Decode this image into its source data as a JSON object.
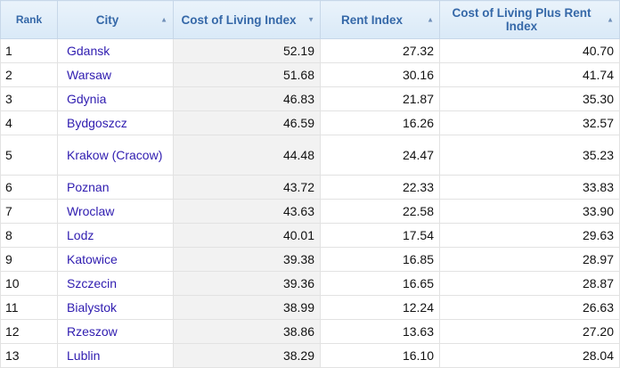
{
  "headers": {
    "rank": "Rank",
    "city": "City",
    "col": "Cost of Living Index",
    "rent": "Rent Index",
    "plus": "Cost of Living Plus Rent Index"
  },
  "sort_icons": {
    "city": "chevron-up-icon",
    "col": "chevron-down-icon",
    "rent": "chevron-up-icon",
    "plus": "chevron-up-icon"
  },
  "colors": {
    "header_text": "#3568a8",
    "link": "#2f1cb0",
    "sorted_column_bg": "#f2f2f2"
  },
  "rows": [
    {
      "rank": "1",
      "city": "Gdansk",
      "col": "52.19",
      "rent": "27.32",
      "plus": "40.70"
    },
    {
      "rank": "2",
      "city": "Warsaw",
      "col": "51.68",
      "rent": "30.16",
      "plus": "41.74"
    },
    {
      "rank": "3",
      "city": "Gdynia",
      "col": "46.83",
      "rent": "21.87",
      "plus": "35.30"
    },
    {
      "rank": "4",
      "city": "Bydgoszcz",
      "col": "46.59",
      "rent": "16.26",
      "plus": "32.57"
    },
    {
      "rank": "5",
      "city": "Krakow (Cracow)",
      "col": "44.48",
      "rent": "24.47",
      "plus": "35.23"
    },
    {
      "rank": "6",
      "city": "Poznan",
      "col": "43.72",
      "rent": "22.33",
      "plus": "33.83"
    },
    {
      "rank": "7",
      "city": "Wroclaw",
      "col": "43.63",
      "rent": "22.58",
      "plus": "33.90"
    },
    {
      "rank": "8",
      "city": "Lodz",
      "col": "40.01",
      "rent": "17.54",
      "plus": "29.63"
    },
    {
      "rank": "9",
      "city": "Katowice",
      "col": "39.38",
      "rent": "16.85",
      "plus": "28.97"
    },
    {
      "rank": "10",
      "city": "Szczecin",
      "col": "39.36",
      "rent": "16.65",
      "plus": "28.87"
    },
    {
      "rank": "11",
      "city": "Bialystok",
      "col": "38.99",
      "rent": "12.24",
      "plus": "26.63"
    },
    {
      "rank": "12",
      "city": "Rzeszow",
      "col": "38.86",
      "rent": "13.63",
      "plus": "27.20"
    },
    {
      "rank": "13",
      "city": "Lublin",
      "col": "38.29",
      "rent": "16.10",
      "plus": "28.04"
    }
  ]
}
